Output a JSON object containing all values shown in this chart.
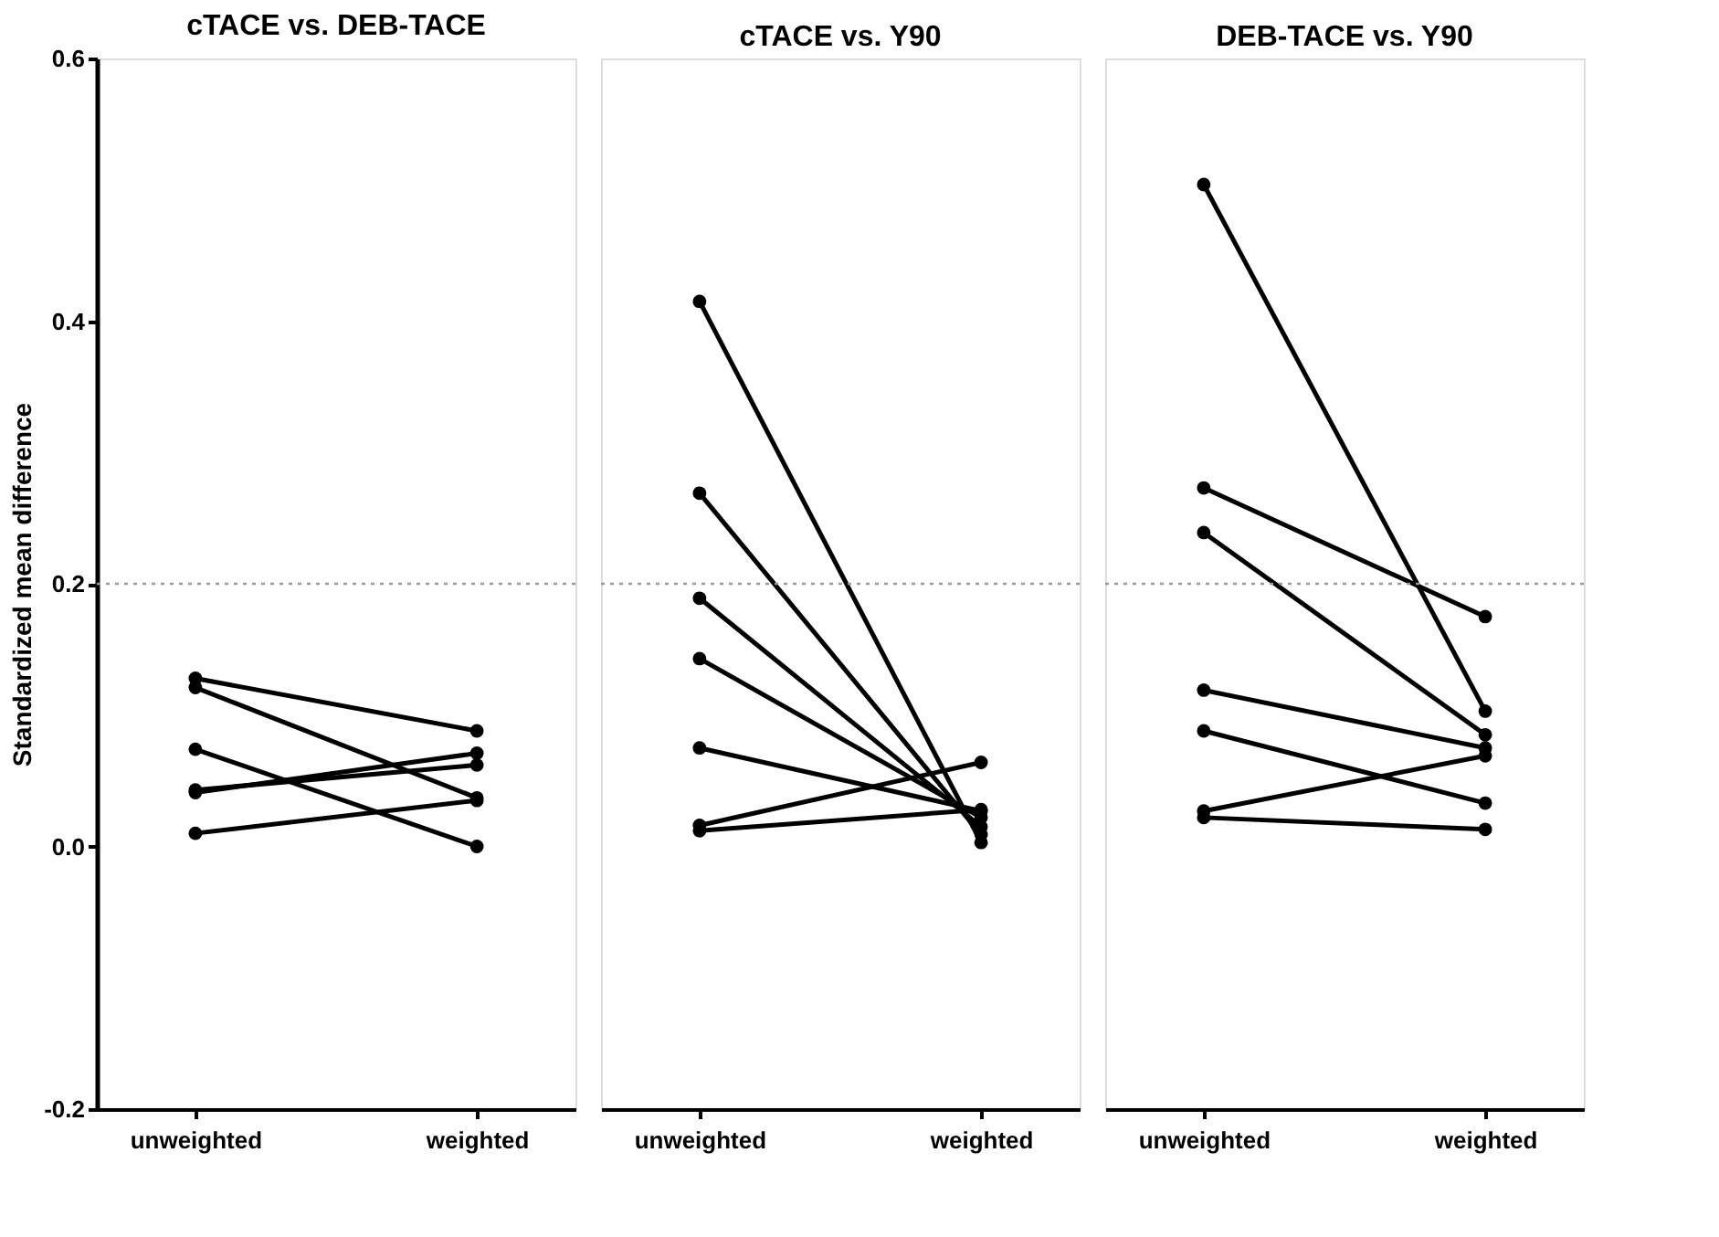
{
  "chart_data": [
    {
      "type": "line",
      "title": "cTACE vs. DEB-TACE",
      "ylabel": "Standardized mean difference",
      "categories": [
        "unweighted",
        "weighted"
      ],
      "ylim": [
        -0.2,
        0.6
      ],
      "yticks": [
        {
          "value": -0.2,
          "label": "-0.2"
        },
        {
          "value": 0.0,
          "label": "0.0"
        },
        0.2,
        0.4,
        0.6
      ],
      "marker": "circle",
      "line_style": "solid",
      "grid": false,
      "ref_lines": [
        {
          "axis": "y",
          "value": 0.2,
          "color": "#999999",
          "line_style": "dotted"
        }
      ],
      "series": [
        {
          "color": "#000000",
          "values": [
            0.128,
            0.088
          ]
        },
        {
          "color": "#000000",
          "values": [
            0.121,
            0.037
          ]
        },
        {
          "color": "#000000",
          "values": [
            0.074,
            0.0
          ]
        },
        {
          "color": "#000000",
          "values": [
            0.043,
            0.062
          ]
        },
        {
          "color": "#000000",
          "values": [
            0.041,
            0.071
          ]
        },
        {
          "color": "#000000",
          "values": [
            0.01,
            0.035
          ]
        }
      ]
    },
    {
      "type": "line",
      "title": "cTACE vs. Y90",
      "categories": [
        "unweighted",
        "weighted"
      ],
      "ylim": [
        -0.2,
        0.6
      ],
      "tick_labels": "x",
      "marker": "circle",
      "line_style": "solid",
      "grid": false,
      "ref_lines": [
        {
          "axis": "y",
          "value": 0.2,
          "color": "#999999",
          "line_style": "dotted"
        }
      ],
      "series": [
        {
          "color": "#000000",
          "values": [
            0.415,
            0.003
          ]
        },
        {
          "color": "#000000",
          "values": [
            0.269,
            0.009
          ]
        },
        {
          "color": "#000000",
          "values": [
            0.189,
            0.015
          ]
        },
        {
          "color": "#000000",
          "values": [
            0.143,
            0.022
          ]
        },
        {
          "color": "#000000",
          "values": [
            0.075,
            0.027
          ]
        },
        {
          "color": "#000000",
          "values": [
            0.016,
            0.064
          ]
        },
        {
          "color": "#000000",
          "values": [
            0.012,
            0.028
          ]
        }
      ]
    },
    {
      "type": "line",
      "title": "DEB-TACE vs. Y90",
      "categories": [
        "unweighted",
        "weighted"
      ],
      "ylim": [
        -0.2,
        0.6
      ],
      "tick_labels": "x",
      "marker": "circle",
      "line_style": "solid",
      "grid": false,
      "ref_lines": [
        {
          "axis": "y",
          "value": 0.2,
          "color": "#999999",
          "line_style": "dotted"
        }
      ],
      "series": [
        {
          "color": "#000000",
          "values": [
            0.504,
            0.103
          ]
        },
        {
          "color": "#000000",
          "values": [
            0.273,
            0.175
          ]
        },
        {
          "color": "#000000",
          "values": [
            0.239,
            0.085
          ]
        },
        {
          "color": "#000000",
          "values": [
            0.119,
            0.075
          ]
        },
        {
          "color": "#000000",
          "values": [
            0.088,
            0.033
          ]
        },
        {
          "color": "#000000",
          "values": [
            0.027,
            0.069
          ]
        },
        {
          "color": "#000000",
          "values": [
            0.022,
            0.013
          ]
        }
      ]
    }
  ]
}
